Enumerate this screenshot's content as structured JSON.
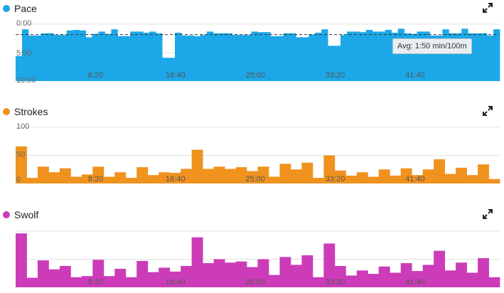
{
  "panels": {
    "pace": {
      "title": "Pace",
      "color": "#1ca8e8",
      "icon": "expand-icon"
    },
    "strokes": {
      "title": "Strokes",
      "color": "#f0921e",
      "icon": "expand-icon"
    },
    "swolf": {
      "title": "Swolf",
      "color": "#cc3cb8",
      "icon": "expand-icon"
    }
  },
  "tooltip": {
    "text": "Avg: 1:50 min/100m"
  },
  "chart_data": [
    {
      "type": "area",
      "name": "pace",
      "title": "Pace",
      "xlabel": "",
      "ylabel": "",
      "x_ticks": [
        "8:20",
        "16:40",
        "25:00",
        "33:20",
        "41:40"
      ],
      "x_tick_values": [
        8.333,
        16.667,
        25.0,
        33.333,
        41.667
      ],
      "xlim": [
        0,
        50.5
      ],
      "y_ticks": [
        "0:00",
        "5:00",
        "10:00"
      ],
      "y_tick_values": [
        0,
        5,
        10
      ],
      "ylim_inverted": [
        0,
        10
      ],
      "avg_value": 1.83,
      "avg_label": "Avg: 1:50 min/100m",
      "values": [
        5.6,
        0.9,
        2.0,
        2.0,
        1.6,
        1.6,
        1.9,
        1.9,
        1.1,
        1.0,
        1.1,
        2.3,
        1.7,
        1.3,
        1.7,
        0.9,
        2.1,
        2.1,
        1.3,
        1.3,
        1.5,
        1.3,
        1.6,
        5.9,
        5.9,
        1.5,
        2.0,
        2.0,
        2.1,
        1.9,
        1.3,
        1.6,
        1.6,
        1.6,
        1.9,
        1.9,
        1.9,
        1.3,
        1.4,
        1.4,
        2.1,
        2.1,
        1.6,
        1.6,
        2.3,
        2.3,
        1.8,
        1.5,
        0.9,
        3.8,
        3.8,
        1.9,
        1.3,
        1.3,
        1.4,
        1.0,
        1.3,
        1.3,
        1.0,
        1.5,
        0.8,
        1.6,
        1.7,
        1.3,
        1.3,
        2.0,
        2.0,
        0.9,
        1.6,
        1.6,
        0.8,
        1.6,
        1.6,
        1.6,
        2.0,
        0.9
      ]
    },
    {
      "type": "bar",
      "name": "strokes",
      "title": "Strokes",
      "xlabel": "",
      "ylabel": "",
      "x_ticks": [
        "8:20",
        "16:40",
        "25:00",
        "33:20",
        "41:40"
      ],
      "x_tick_values": [
        8.333,
        16.667,
        25.0,
        33.333,
        41.667
      ],
      "xlim": [
        0,
        50.5
      ],
      "y_ticks": [
        "0",
        "50",
        "100"
      ],
      "y_tick_values": [
        0,
        50,
        100
      ],
      "ylim": [
        0,
        100
      ],
      "values": [
        66,
        10,
        30,
        20,
        27,
        12,
        16,
        30,
        12,
        20,
        10,
        29,
        15,
        20,
        19,
        26,
        60,
        26,
        30,
        26,
        29,
        22,
        30,
        12,
        35,
        25,
        37,
        10,
        50,
        23,
        14,
        20,
        12,
        25,
        14,
        27,
        15,
        25,
        43,
        17,
        28,
        15,
        34,
        8
      ]
    },
    {
      "type": "bar",
      "name": "swolf",
      "title": "Swolf",
      "xlabel": "",
      "ylabel": "",
      "x_ticks": [
        "8:20",
        "16:40",
        "25:00",
        "33:20",
        "41:40"
      ],
      "x_tick_values": [
        8.333,
        16.667,
        25.0,
        33.333,
        41.667
      ],
      "xlim": [
        0,
        50.5
      ],
      "ylim": [
        0,
        100
      ],
      "values": [
        96,
        17,
        48,
        32,
        38,
        18,
        20,
        49,
        20,
        33,
        18,
        47,
        27,
        35,
        28,
        38,
        89,
        43,
        50,
        44,
        46,
        36,
        50,
        22,
        54,
        40,
        57,
        18,
        78,
        38,
        21,
        30,
        24,
        37,
        26,
        43,
        29,
        40,
        65,
        30,
        44,
        26,
        52,
        18
      ]
    }
  ]
}
